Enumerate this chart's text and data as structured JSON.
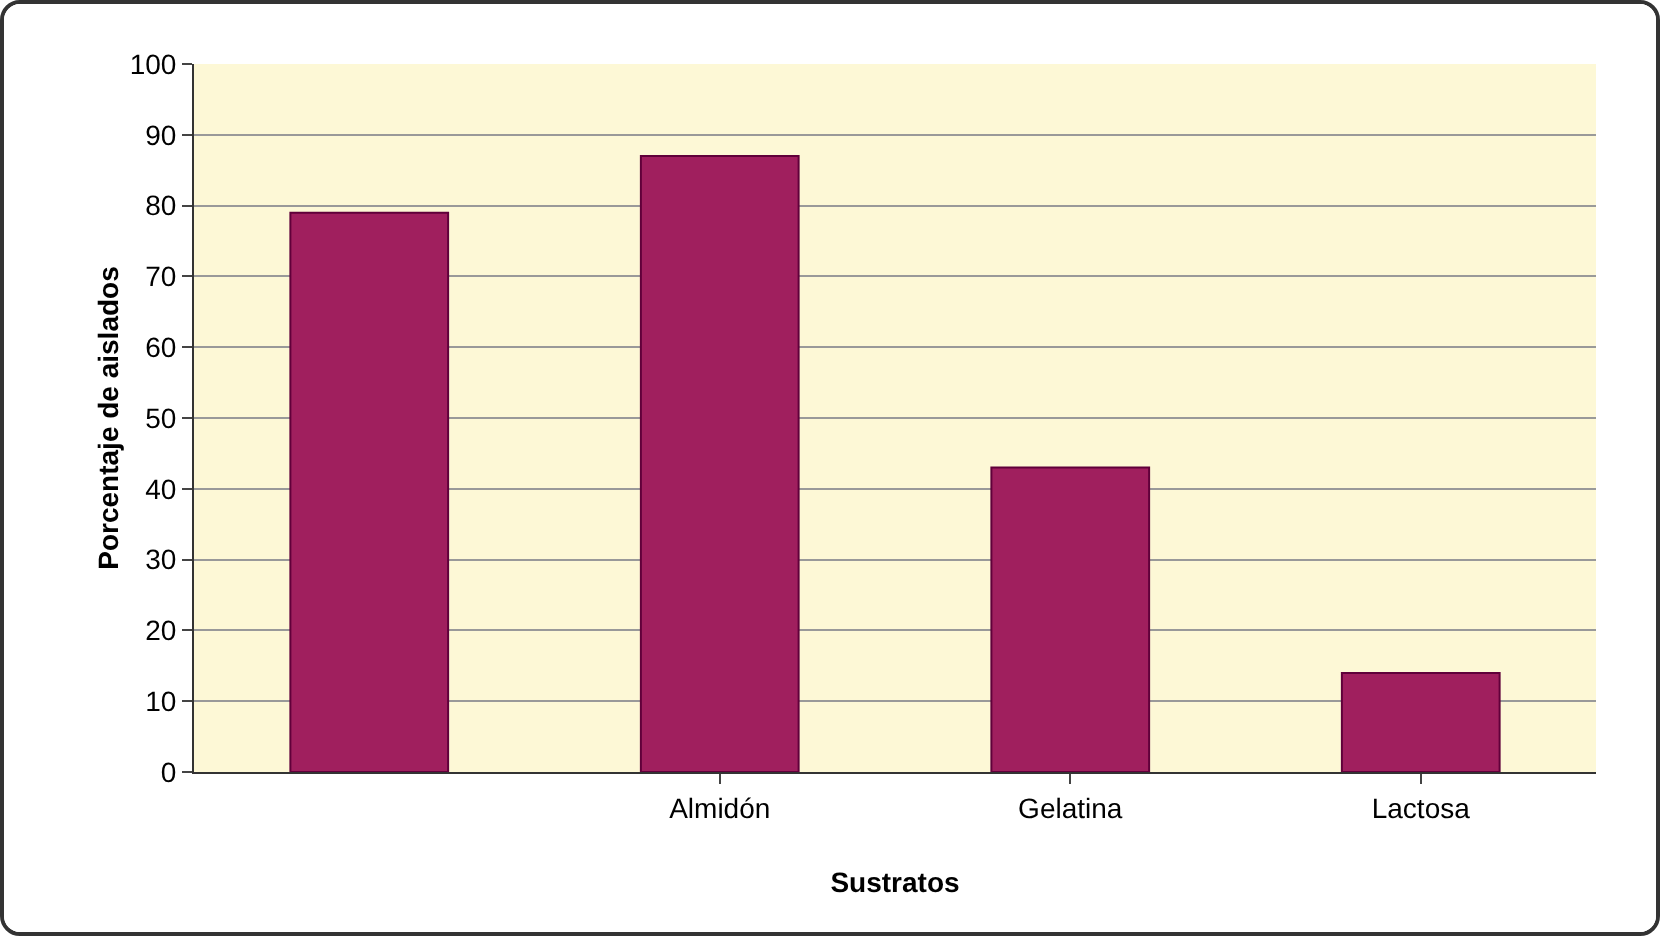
{
  "chart_data": {
    "type": "bar",
    "xlabel": "Sustratos",
    "ylabel": "Porcentaje de aislados",
    "categories": [
      null,
      "Almidón",
      "Gelatina",
      "Lactosa"
    ],
    "values": [
      79,
      87,
      43,
      14
    ],
    "color": "#a01f5e",
    "ylim": [
      0,
      100
    ],
    "yticks": [
      0,
      10,
      20,
      30,
      40,
      50,
      60,
      70,
      80,
      90,
      100
    ],
    "grid": "y"
  }
}
